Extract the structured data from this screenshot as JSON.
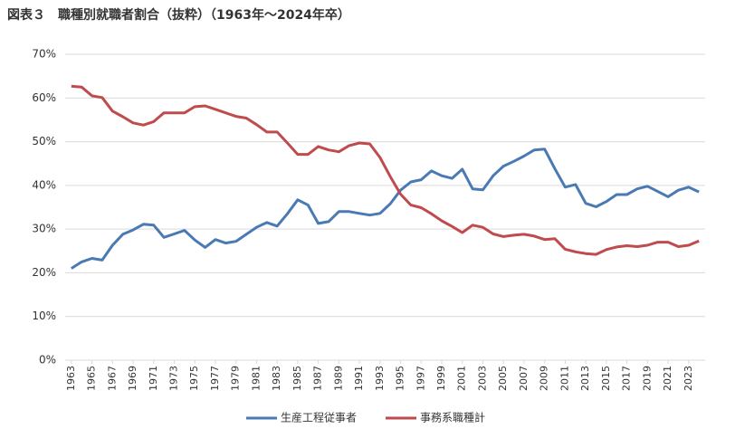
{
  "chart_data": {
    "type": "line",
    "title": "図表３　職種別就職者割合（抜粋）（1963年～2024年卒）",
    "x": [
      1963,
      1964,
      1965,
      1966,
      1967,
      1968,
      1969,
      1970,
      1971,
      1972,
      1973,
      1974,
      1975,
      1976,
      1977,
      1978,
      1979,
      1980,
      1981,
      1982,
      1983,
      1984,
      1985,
      1986,
      1987,
      1988,
      1989,
      1990,
      1991,
      1992,
      1993,
      1994,
      1995,
      1996,
      1997,
      1998,
      1999,
      2000,
      2001,
      2002,
      2003,
      2004,
      2005,
      2006,
      2007,
      2008,
      2009,
      2010,
      2011,
      2012,
      2013,
      2014,
      2015,
      2016,
      2017,
      2018,
      2019,
      2020,
      2021,
      2022,
      2023,
      2024
    ],
    "series": [
      {
        "name": "生産工程従事者",
        "color": "#4a7ab4",
        "values": [
          21.0,
          22.5,
          23.3,
          22.9,
          26.3,
          28.8,
          29.8,
          31.1,
          30.9,
          28.1,
          28.9,
          29.7,
          27.5,
          25.8,
          27.6,
          26.8,
          27.2,
          28.8,
          30.4,
          31.5,
          30.7,
          33.5,
          36.7,
          35.5,
          31.3,
          31.7,
          34.0,
          34.0,
          33.6,
          33.2,
          33.6,
          35.8,
          38.9,
          40.8,
          41.3,
          43.3,
          42.2,
          41.6,
          43.7,
          39.2,
          39.0,
          42.2,
          44.4,
          45.5,
          46.7,
          48.1,
          48.3,
          43.8,
          39.6,
          40.2,
          35.9,
          35.1,
          36.3,
          37.9,
          37.9,
          39.2,
          39.8,
          38.6,
          37.4,
          38.9,
          39.6,
          38.5
        ]
      },
      {
        "name": "事務系職種計",
        "color": "#bf4b4e",
        "values": [
          62.7,
          62.5,
          60.5,
          60.1,
          57.0,
          55.7,
          54.3,
          53.8,
          54.6,
          56.6,
          56.6,
          56.6,
          58.0,
          58.2,
          57.4,
          56.6,
          55.8,
          55.4,
          53.9,
          52.2,
          52.2,
          49.7,
          47.1,
          47.1,
          48.9,
          48.1,
          47.7,
          49.1,
          49.7,
          49.5,
          46.4,
          42.0,
          38.0,
          35.5,
          34.9,
          33.5,
          31.9,
          30.6,
          29.2,
          30.9,
          30.4,
          28.9,
          28.3,
          28.6,
          28.8,
          28.4,
          27.6,
          27.8,
          25.4,
          24.8,
          24.4,
          24.2,
          25.3,
          25.9,
          26.2,
          26.0,
          26.3,
          27.0,
          27.0,
          26.0,
          26.3,
          27.3
        ]
      }
    ],
    "xlim": [
      1962.4,
      2024.6
    ],
    "xticks": [
      1963,
      1965,
      1967,
      1969,
      1971,
      1973,
      1975,
      1977,
      1979,
      1981,
      1983,
      1985,
      1987,
      1989,
      1991,
      1993,
      1995,
      1997,
      1999,
      2001,
      2003,
      2005,
      2007,
      2009,
      2011,
      2013,
      2015,
      2017,
      2019,
      2021,
      2023
    ],
    "ylim": [
      0,
      70
    ],
    "yticks": [
      {
        "value": 0,
        "label": "0%"
      },
      {
        "value": 10,
        "label": "10%"
      },
      {
        "value": 20,
        "label": "20%"
      },
      {
        "value": 30,
        "label": "30%"
      },
      {
        "value": 40,
        "label": "40%"
      },
      {
        "value": 50,
        "label": "50%"
      },
      {
        "value": 60,
        "label": "60%"
      },
      {
        "value": 70,
        "label": "70%"
      }
    ],
    "grid": true
  }
}
